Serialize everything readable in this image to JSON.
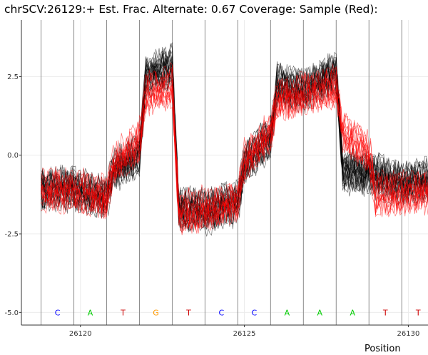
{
  "chart_data": {
    "type": "line",
    "title": "chrSCV:26129:+ Est. Frac. Alternate: 0.67  Coverage: Sample (Red):",
    "xlabel": "Position",
    "ylabel": "",
    "xlim": [
      26118.2,
      26130.6
    ],
    "ylim": [
      -5.4,
      4.3
    ],
    "x_ticks": [
      26120,
      26125,
      26130
    ],
    "y_ticks": [
      2.5,
      0.0,
      -2.5,
      -5.0
    ],
    "y_tick_labels": [
      "2.5",
      "0.0",
      "-2.5",
      "-5.0"
    ],
    "grid": true,
    "legend": "none",
    "position_boundaries": [
      26118.8,
      26119.8,
      26120.8,
      26121.8,
      26122.8,
      26123.8,
      26124.8,
      26125.8,
      26126.8,
      26127.8,
      26128.8,
      26129.8,
      26130.8
    ],
    "bases": [
      {
        "x": 26119.3,
        "label": "C",
        "color": "#0000ff"
      },
      {
        "x": 26120.3,
        "label": "A",
        "color": "#00cc00"
      },
      {
        "x": 26121.3,
        "label": "T",
        "color": "#cc0000"
      },
      {
        "x": 26122.3,
        "label": "G",
        "color": "#ff9900"
      },
      {
        "x": 26123.3,
        "label": "T",
        "color": "#cc0000"
      },
      {
        "x": 26124.3,
        "label": "C",
        "color": "#0000ff"
      },
      {
        "x": 26125.3,
        "label": "C",
        "color": "#0000ff"
      },
      {
        "x": 26126.3,
        "label": "A",
        "color": "#00cc00"
      },
      {
        "x": 26127.3,
        "label": "A",
        "color": "#00cc00"
      },
      {
        "x": 26128.3,
        "label": "A",
        "color": "#00cc00"
      },
      {
        "x": 26129.3,
        "label": "T",
        "color": "#cc0000"
      },
      {
        "x": 26130.3,
        "label": "T",
        "color": "#cc0000"
      }
    ],
    "series": [
      {
        "color": "#000000",
        "points": [
          [
            26118.8,
            -1.1
          ],
          [
            26119.8,
            -1.1
          ],
          [
            26120.8,
            -1.4
          ],
          [
            26121.0,
            -0.5
          ],
          [
            26121.8,
            0.0
          ],
          [
            26122.0,
            2.5
          ],
          [
            26122.8,
            2.8
          ],
          [
            26123.0,
            -1.7
          ],
          [
            26123.8,
            -1.8
          ],
          [
            26124.8,
            -1.5
          ],
          [
            26125.0,
            -0.3
          ],
          [
            26125.8,
            0.6
          ],
          [
            26126.0,
            2.2
          ],
          [
            26126.8,
            2.0
          ],
          [
            26127.8,
            2.6
          ],
          [
            26128.0,
            -0.5
          ],
          [
            26128.8,
            -0.6
          ],
          [
            26129.8,
            -0.9
          ],
          [
            26130.8,
            -0.8
          ]
        ]
      },
      {
        "color": "#ff0000",
        "points": [
          [
            26118.8,
            -1.1
          ],
          [
            26119.8,
            -1.1
          ],
          [
            26120.8,
            -1.3
          ],
          [
            26121.0,
            -0.3
          ],
          [
            26121.8,
            0.5
          ],
          [
            26122.0,
            2.0
          ],
          [
            26122.8,
            2.2
          ],
          [
            26123.0,
            -1.8
          ],
          [
            26123.8,
            -1.7
          ],
          [
            26124.8,
            -1.4
          ],
          [
            26125.0,
            -0.2
          ],
          [
            26125.8,
            0.8
          ],
          [
            26126.0,
            1.8
          ],
          [
            26126.8,
            2.0
          ],
          [
            26127.8,
            2.2
          ],
          [
            26128.0,
            0.8
          ],
          [
            26128.8,
            0.1
          ],
          [
            26129.0,
            -1.2
          ],
          [
            26129.8,
            -1.2
          ],
          [
            26130.8,
            -1.1
          ]
        ]
      }
    ]
  }
}
